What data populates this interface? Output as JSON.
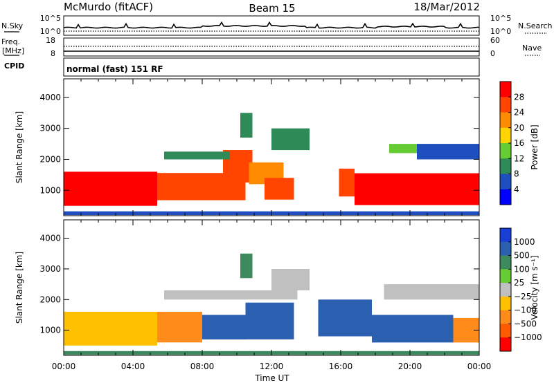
{
  "header": {
    "station": "McMurdo (fitACF)",
    "beam": "Beam 15",
    "date": "18/Mar/2012"
  },
  "top_panel": {
    "left_label": "N.Sky",
    "left_ticks": [
      "10^5",
      "10^0"
    ],
    "right_label": "N.Search",
    "right_ticks": [
      "10^5",
      "10^0"
    ]
  },
  "freq_panel": {
    "left_label_1": "Freq.",
    "left_label_2": "[MHz]",
    "left_ticks": [
      "18",
      "8"
    ],
    "right_label": "Nave",
    "right_ticks": [
      "60",
      "0"
    ]
  },
  "cpid": {
    "label": "CPID",
    "text": "normal (fast) 151 RF"
  },
  "colors": {
    "power_scale": [
      "#0000ff",
      "#1f4fbf",
      "#2e8b57",
      "#66cc33",
      "#ffd400",
      "#ff8c00",
      "#ff4500",
      "#ff0000"
    ],
    "velocity_scale": [
      "#1a3fd6",
      "#2b5fb0",
      "#3d8a5f",
      "#66cc33",
      "#c0c0c0",
      "#ffc000",
      "#ff8c1a",
      "#ff5a00",
      "#ff0000"
    ]
  },
  "chart_data": [
    {
      "type": "heatmap",
      "title": "",
      "ylabel": "Slant Range [km]",
      "yticks": [
        "1000",
        "2000",
        "3000",
        "4000"
      ],
      "ylim": [
        180,
        4600
      ],
      "xlim_hours": [
        0,
        24
      ],
      "colorbar_label": "Power [dB]",
      "colorbar_ticks": [
        "4",
        "8",
        "12",
        "16",
        "20",
        "24",
        "28"
      ],
      "colorbar_range": [
        0,
        32
      ],
      "bands": [
        {
          "t0": 0.0,
          "t1": 5.4,
          "r0": 500,
          "r1": 1600,
          "v": 28
        },
        {
          "t0": 5.4,
          "t1": 10.5,
          "r0": 680,
          "r1": 1560,
          "v": 26
        },
        {
          "t0": 9.2,
          "t1": 10.9,
          "r0": 1250,
          "r1": 2300,
          "v": 25
        },
        {
          "t0": 10.7,
          "t1": 12.7,
          "r0": 1200,
          "r1": 1900,
          "v": 21
        },
        {
          "t0": 11.6,
          "t1": 13.3,
          "r0": 700,
          "r1": 1400,
          "v": 24
        },
        {
          "t0": 15.9,
          "t1": 16.8,
          "r0": 800,
          "r1": 1700,
          "v": 24
        },
        {
          "t0": 16.8,
          "t1": 24.0,
          "r0": 520,
          "r1": 1550,
          "v": 28
        },
        {
          "t0": 18.8,
          "t1": 20.5,
          "r0": 2200,
          "r1": 2500,
          "v": 14
        },
        {
          "t0": 5.8,
          "t1": 9.6,
          "r0": 2000,
          "r1": 2250,
          "v": 10
        },
        {
          "t0": 10.2,
          "t1": 10.9,
          "r0": 2700,
          "r1": 3500,
          "v": 9
        },
        {
          "t0": 12.0,
          "t1": 14.2,
          "r0": 2300,
          "r1": 3000,
          "v": 11
        },
        {
          "t0": 20.4,
          "t1": 24.0,
          "r0": 2000,
          "r1": 2500,
          "v": 7
        },
        {
          "t0": 0.0,
          "t1": 24.0,
          "r0": 200,
          "r1": 320,
          "v": 5
        }
      ]
    },
    {
      "type": "heatmap",
      "title": "",
      "ylabel": "Slant Range [km]",
      "yticks": [
        "1000",
        "2000",
        "3000",
        "4000"
      ],
      "ylim": [
        180,
        4600
      ],
      "xticks": [
        "00:00",
        "04:00",
        "08:00",
        "12:00",
        "16:00",
        "20:00",
        "00:00"
      ],
      "xlabel": "Time UT",
      "colorbar_label": "Velocity [m s⁻¹]",
      "colorbar_ticks": [
        "1000",
        "500",
        "100",
        "25",
        "−25",
        "−100",
        "−500",
        "−1000"
      ],
      "bands": [
        {
          "t0": 0.0,
          "t1": 5.4,
          "r0": 500,
          "r1": 1600,
          "v": -1
        },
        {
          "t0": 5.4,
          "t1": 8.0,
          "r0": 600,
          "r1": 1600,
          "v": -2
        },
        {
          "t0": 8.0,
          "t1": 10.6,
          "r0": 700,
          "r1": 1500,
          "v": 3
        },
        {
          "t0": 10.5,
          "t1": 13.3,
          "r0": 700,
          "r1": 1900,
          "v": 3
        },
        {
          "t0": 14.7,
          "t1": 17.8,
          "r0": 800,
          "r1": 2000,
          "v": 3
        },
        {
          "t0": 17.8,
          "t1": 22.5,
          "r0": 600,
          "r1": 1500,
          "v": 3
        },
        {
          "t0": 22.5,
          "t1": 24.0,
          "r0": 600,
          "r1": 1400,
          "v": -2
        },
        {
          "t0": 5.8,
          "t1": 13.5,
          "r0": 2000,
          "r1": 2300,
          "v": 0
        },
        {
          "t0": 18.5,
          "t1": 24.0,
          "r0": 2000,
          "r1": 2500,
          "v": 0
        },
        {
          "t0": 10.2,
          "t1": 10.9,
          "r0": 2700,
          "r1": 3500,
          "v": 2
        },
        {
          "t0": 12.0,
          "t1": 14.2,
          "r0": 2300,
          "r1": 3000,
          "v": 0
        },
        {
          "t0": 0.0,
          "t1": 24.0,
          "r0": 200,
          "r1": 320,
          "v": 2
        }
      ]
    }
  ]
}
